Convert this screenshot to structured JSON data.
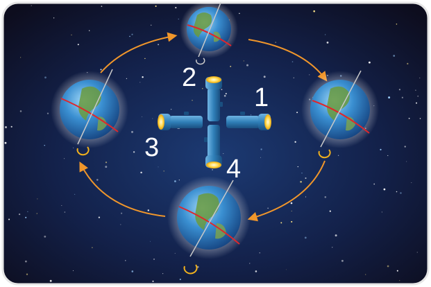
{
  "labels": {
    "one": "1",
    "two": "2",
    "three": "3",
    "four": "4"
  },
  "colors": {
    "space_center": "#1c3a73",
    "space_edge": "#0d0d1e",
    "orbit_arrow": "#f0962b",
    "equator": "#e0262b",
    "flashlight_body": "#2f7fb8",
    "flashlight_lens": "#ffd84a",
    "rotation_marker": "#f2b21d"
  },
  "icons": [
    "earth-globe-icon",
    "flashlight-icon",
    "rotation-arrow-icon",
    "orbit-arrow-icon"
  ]
}
